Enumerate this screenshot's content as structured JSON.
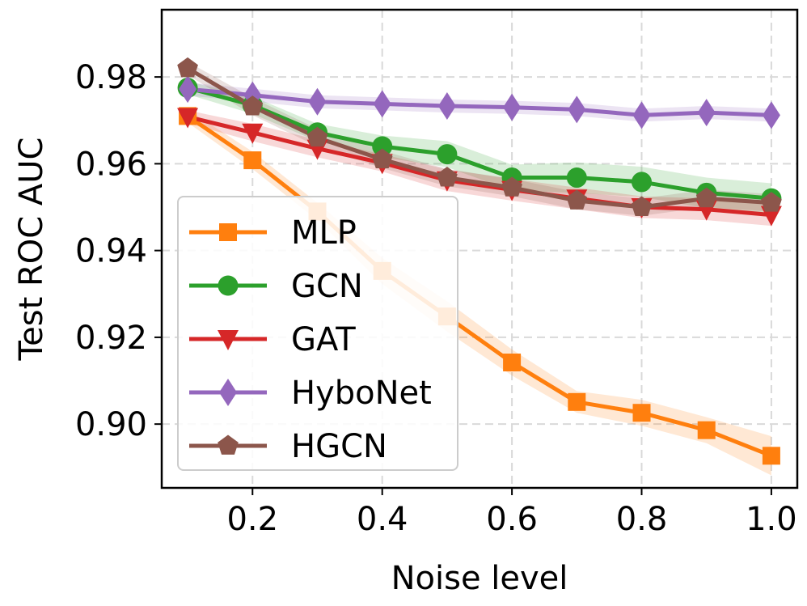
{
  "chart_data": {
    "type": "line",
    "title": "",
    "xlabel": "Noise level",
    "ylabel": "Test ROC AUC",
    "xlim": [
      0.06,
      1.04
    ],
    "ylim": [
      0.8853,
      0.9955
    ],
    "grid": true,
    "legend_position": "lower-left",
    "x_ticks": [
      0.2,
      0.4,
      0.6,
      0.8,
      1.0
    ],
    "x_tick_labels": [
      "0.2",
      "0.4",
      "0.6",
      "0.8",
      "1.0"
    ],
    "y_ticks": [
      0.9,
      0.92,
      0.94,
      0.96,
      0.98
    ],
    "y_tick_labels": [
      "0.90",
      "0.92",
      "0.94",
      "0.96",
      "0.98"
    ],
    "x": [
      0.1,
      0.2,
      0.3,
      0.4,
      0.5,
      0.6,
      0.7,
      0.8,
      0.9,
      1.0
    ],
    "series": [
      {
        "name": "MLP",
        "color": "#ff7f0e",
        "marker": "square",
        "values": [
          0.971,
          0.9608,
          0.949,
          0.9353,
          0.9248,
          0.9142,
          0.9051,
          0.9026,
          0.8986,
          0.8927
        ],
        "band": [
          0.0015,
          0.002,
          0.002,
          0.003,
          0.0035,
          0.003,
          0.0025,
          0.003,
          0.003,
          0.0045
        ]
      },
      {
        "name": "GCN",
        "color": "#2ca02c",
        "marker": "circle",
        "values": [
          0.9775,
          0.9735,
          0.9672,
          0.964,
          0.9622,
          0.9568,
          0.9568,
          0.9558,
          0.9533,
          0.952
        ],
        "band": [
          0.0015,
          0.002,
          0.002,
          0.0025,
          0.003,
          0.003,
          0.0035,
          0.0035,
          0.0035,
          0.0035
        ]
      },
      {
        "name": "GAT",
        "color": "#d62728",
        "marker": "triangle-down",
        "values": [
          0.9708,
          0.9672,
          0.9635,
          0.9602,
          0.9562,
          0.954,
          0.952,
          0.95,
          0.9495,
          0.9482
        ],
        "band": [
          0.0015,
          0.002,
          0.002,
          0.002,
          0.0025,
          0.0025,
          0.0025,
          0.0025,
          0.0025,
          0.0025
        ]
      },
      {
        "name": "HyboNet",
        "color": "#9467bd",
        "marker": "diamond",
        "values": [
          0.9772,
          0.9758,
          0.9743,
          0.9738,
          0.9733,
          0.973,
          0.9725,
          0.9712,
          0.9718,
          0.9712
        ],
        "band": [
          0.0015,
          0.0015,
          0.0015,
          0.0015,
          0.0015,
          0.0015,
          0.0015,
          0.0015,
          0.0015,
          0.0015
        ]
      },
      {
        "name": "HGCN",
        "color": "#8c564b",
        "marker": "pentagon",
        "values": [
          0.982,
          0.9732,
          0.966,
          0.961,
          0.9568,
          0.9545,
          0.9515,
          0.95,
          0.952,
          0.951
        ],
        "band": [
          0.0015,
          0.002,
          0.002,
          0.002,
          0.002,
          0.002,
          0.002,
          0.002,
          0.002,
          0.002
        ]
      }
    ]
  }
}
